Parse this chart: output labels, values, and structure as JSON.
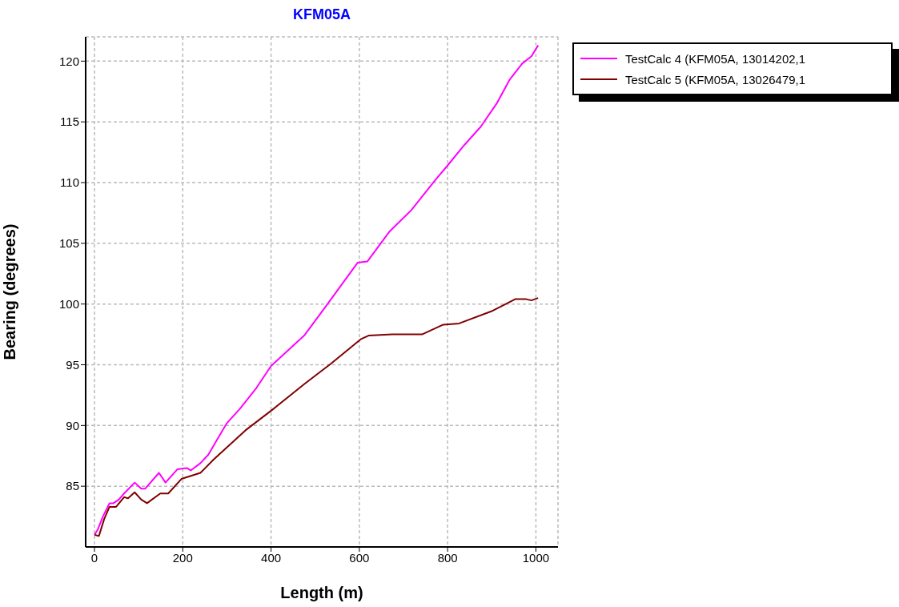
{
  "chart_data": {
    "type": "line",
    "title": "KFM05A",
    "xlabel": "Length (m)",
    "ylabel": "Bearing (degrees)",
    "xlim": [
      -20,
      1050
    ],
    "xticks": [
      0,
      200,
      400,
      600,
      800,
      1000
    ],
    "ylim": [
      80,
      122
    ],
    "yticks": [
      85,
      90,
      95,
      100,
      105,
      110,
      115,
      120
    ],
    "grid": true,
    "legend": "right",
    "marker": "none",
    "line_style": "solid",
    "series": [
      {
        "name": "TestCalc 4 (KFM05A, 13014202,1",
        "color": "#ff00ff",
        "x": [
          0,
          7,
          19,
          34,
          43,
          55,
          67,
          91,
          106,
          115,
          146,
          161,
          188,
          209,
          218,
          240,
          258,
          282,
          300,
          330,
          367,
          400,
          475,
          524,
          596,
          618,
          669,
          717,
          772,
          802,
          838,
          875,
          911,
          941,
          969,
          990,
          1005
        ],
        "values": [
          81.0,
          81.4,
          82.5,
          83.6,
          83.6,
          83.9,
          84.4,
          85.3,
          84.8,
          84.8,
          86.1,
          85.3,
          86.4,
          86.5,
          86.3,
          86.9,
          87.6,
          89.1,
          90.2,
          91.4,
          93.1,
          94.9,
          97.4,
          99.8,
          103.4,
          103.5,
          106.0,
          107.7,
          110.2,
          111.5,
          113.1,
          114.6,
          116.5,
          118.5,
          119.8,
          120.4,
          121.3
        ]
      },
      {
        "name": "TestCalc 5 (KFM05A, 13026479,1",
        "color": "#800000",
        "x": [
          0,
          10,
          22,
          34,
          49,
          67,
          76,
          91,
          106,
          119,
          149,
          167,
          197,
          240,
          270,
          342,
          403,
          475,
          536,
          603,
          621,
          675,
          742,
          790,
          826,
          899,
          953,
          978,
          990,
          1005
        ],
        "values": [
          81.0,
          80.9,
          82.3,
          83.3,
          83.3,
          84.1,
          84.0,
          84.5,
          83.9,
          83.6,
          84.4,
          84.4,
          85.6,
          86.1,
          87.2,
          89.6,
          91.3,
          93.4,
          95.1,
          97.1,
          97.4,
          97.5,
          97.5,
          98.3,
          98.4,
          99.4,
          100.4,
          100.4,
          100.3,
          100.5
        ]
      }
    ]
  }
}
